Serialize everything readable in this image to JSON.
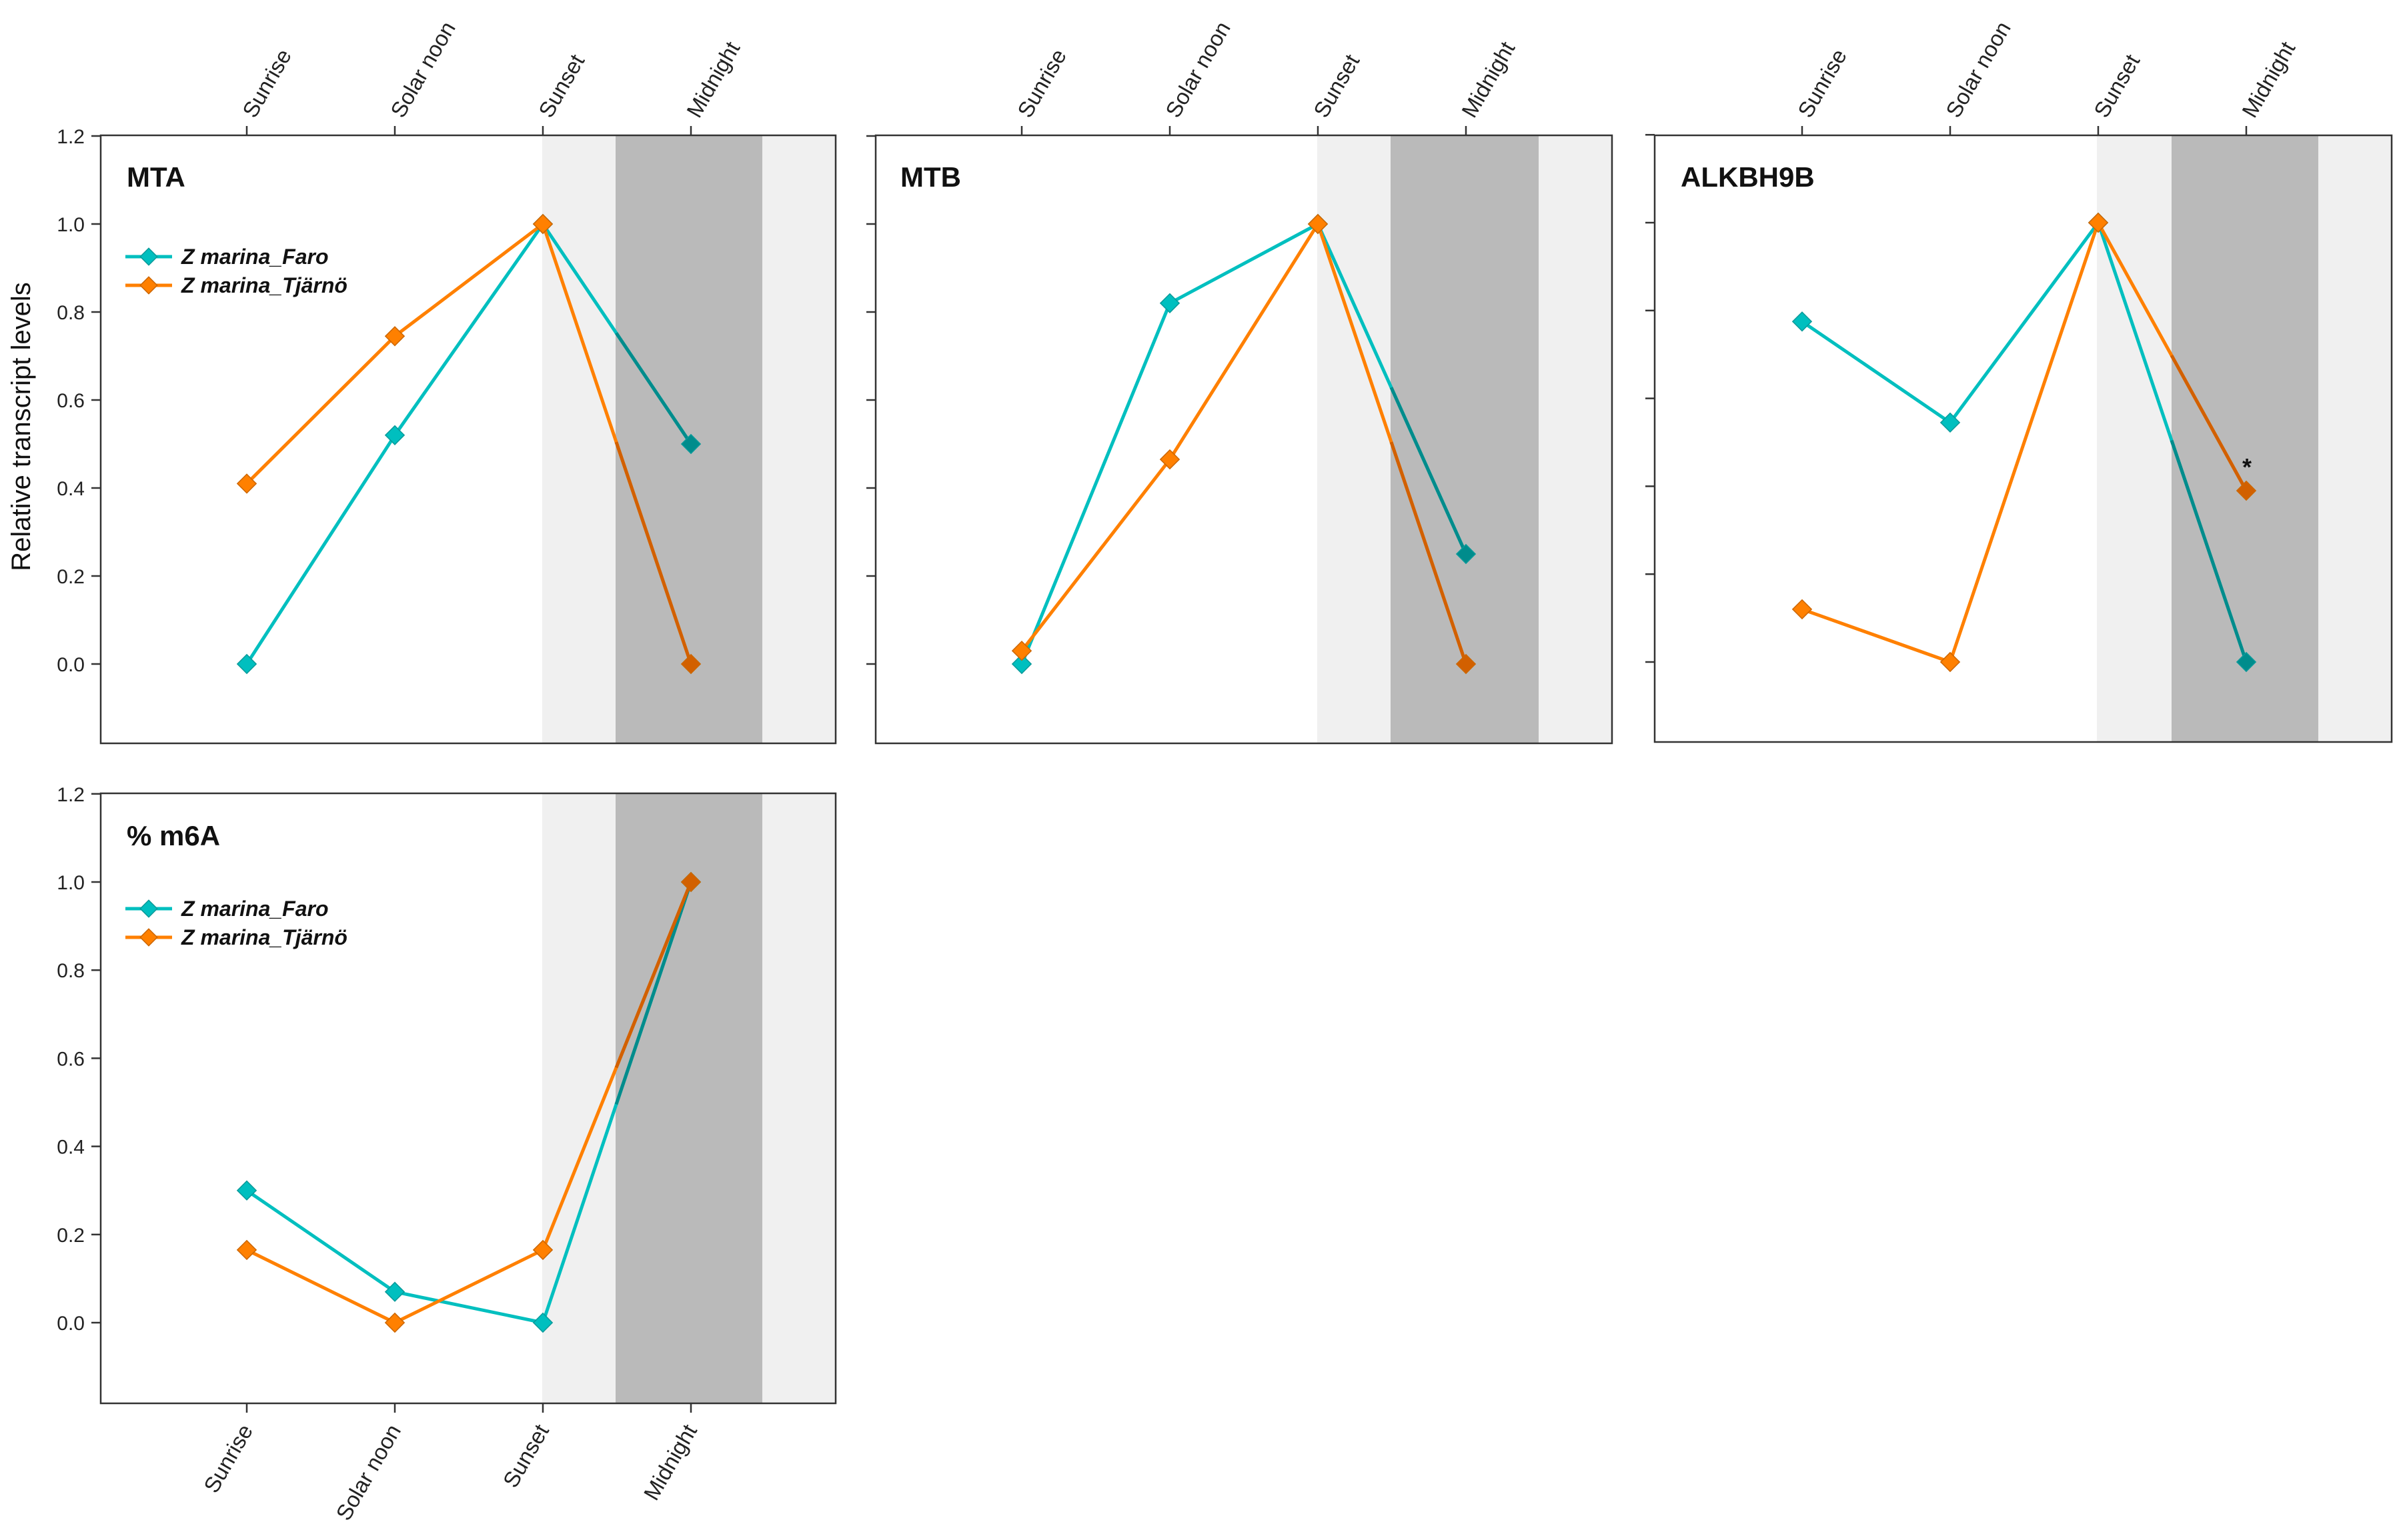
{
  "colors": {
    "faro": "#00BFBF",
    "tjarno": "#FF8000",
    "band_light": "#F0F0F0",
    "band_dark": "#BABABA",
    "axis": "#333333"
  },
  "ylabel": "Relative transcript levels",
  "chart_data": [
    {
      "type": "line",
      "title": "MTA",
      "categories": [
        "Sunrise",
        "Solar noon",
        "Sunset",
        "Midnight"
      ],
      "ylim": [
        -0.18,
        1.2
      ],
      "yticks": [
        "0.0",
        "0.2",
        "0.4",
        "0.6",
        "0.8",
        "1.0",
        "1.2"
      ],
      "ylabel": "Relative transcript levels",
      "legend": [
        "Z marina_Faro",
        "Z marina_Tjärnö"
      ],
      "series": [
        {
          "name": "Z marina_Faro",
          "values": [
            0.0,
            0.52,
            1.0,
            0.5
          ]
        },
        {
          "name": "Z marina_Tjärnö",
          "values": [
            0.41,
            0.745,
            1.0,
            0.0
          ]
        }
      ]
    },
    {
      "type": "line",
      "title": "MTB",
      "categories": [
        "Sunrise",
        "Solar noon",
        "Sunset",
        "Midnight"
      ],
      "ylim": [
        -0.18,
        1.2
      ],
      "series": [
        {
          "name": "Z marina_Faro",
          "values": [
            0.0,
            0.82,
            1.0,
            0.25
          ]
        },
        {
          "name": "Z marina_Tjärnö",
          "values": [
            0.03,
            0.465,
            1.0,
            0.0
          ]
        }
      ]
    },
    {
      "type": "line",
      "title": "ALKBH9B",
      "categories": [
        "Sunrise",
        "Solar noon",
        "Sunset",
        "Midnight"
      ],
      "ylim": [
        -0.18,
        1.2
      ],
      "annotation": "*",
      "series": [
        {
          "name": "Z marina_Faro",
          "values": [
            0.775,
            0.545,
            1.0,
            0.0
          ]
        },
        {
          "name": "Z marina_Tjärnö",
          "values": [
            0.12,
            0.0,
            1.0,
            0.39
          ]
        }
      ]
    },
    {
      "type": "line",
      "title": "% m6A",
      "categories": [
        "Sunrise",
        "Solar noon",
        "Sunset",
        "Midnight"
      ],
      "ylim": [
        -0.18,
        1.2
      ],
      "yticks": [
        "0.0",
        "0.2",
        "0.4",
        "0.6",
        "0.8",
        "1.0",
        "1.2"
      ],
      "legend": [
        "Z marina_Faro",
        "Z marina_Tjärnö"
      ],
      "series": [
        {
          "name": "Z marina_Faro",
          "values": [
            0.3,
            0.07,
            0.0,
            1.0
          ]
        },
        {
          "name": "Z marina_Tjärnö",
          "values": [
            0.165,
            0.0,
            0.165,
            1.0
          ]
        }
      ]
    }
  ]
}
